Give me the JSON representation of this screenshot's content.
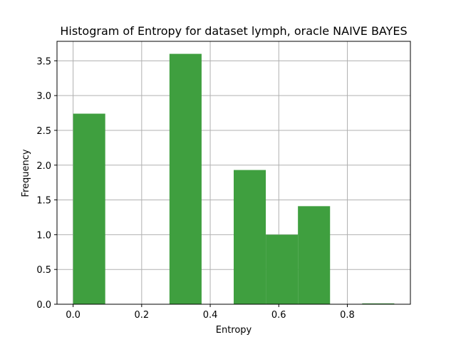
{
  "chart_data": {
    "type": "bar",
    "title": "Histogram of Entropy for dataset lymph, oracle NAIVE BAYES",
    "xlabel": "Entropy",
    "ylabel": "Frequency",
    "bin_edges": [
      0.0,
      0.0937,
      0.1874,
      0.2811,
      0.3748,
      0.4685,
      0.5622,
      0.6559,
      0.7496,
      0.8433,
      0.937
    ],
    "values": [
      2.74,
      0,
      0,
      3.6,
      0,
      1.93,
      1.0,
      1.41,
      0,
      0.012
    ],
    "xlim": [
      -0.047,
      0.984
    ],
    "ylim": [
      0,
      3.78
    ],
    "xticks": [
      0.0,
      0.2,
      0.4,
      0.6,
      0.8
    ],
    "xtick_labels": [
      "0.0",
      "0.2",
      "0.4",
      "0.6",
      "0.8"
    ],
    "yticks": [
      0.0,
      0.5,
      1.0,
      1.5,
      2.0,
      2.5,
      3.0,
      3.5
    ],
    "ytick_labels": [
      "0.0",
      "0.5",
      "1.0",
      "1.5",
      "2.0",
      "2.5",
      "3.0",
      "3.5"
    ],
    "grid": true,
    "bar_color": "#3f9f3f",
    "grid_color": "#b0b0b0"
  }
}
